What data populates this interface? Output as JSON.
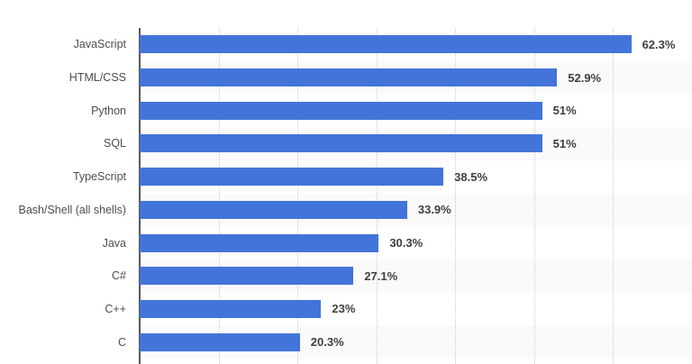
{
  "chart_data": {
    "type": "bar",
    "orientation": "horizontal",
    "title": "",
    "xlabel": "",
    "ylabel": "",
    "categories": [
      "JavaScript",
      "HTML/CSS",
      "Python",
      "SQL",
      "TypeScript",
      "Bash/Shell (all shells)",
      "Java",
      "C#",
      "C++",
      "C"
    ],
    "values": [
      62.3,
      52.9,
      51,
      51,
      38.5,
      33.9,
      30.3,
      27.1,
      23,
      20.3
    ],
    "value_labels": [
      "62.3%",
      "52.9%",
      "51%",
      "51%",
      "38.5%",
      "33.9%",
      "30.3%",
      "27.1%",
      "23%",
      "20.3%"
    ],
    "xlim": [
      0,
      70
    ],
    "gridline_interval": 10,
    "grid": true,
    "legend_position": "none",
    "colors": {
      "bar": "#4374d9",
      "row_band": "#fafafa",
      "axis_line": "#57585a",
      "gridline": "#cccccc",
      "category_label": "#4d4d4d",
      "value_label": "#3f3f3f",
      "background": "#ffffff"
    }
  }
}
